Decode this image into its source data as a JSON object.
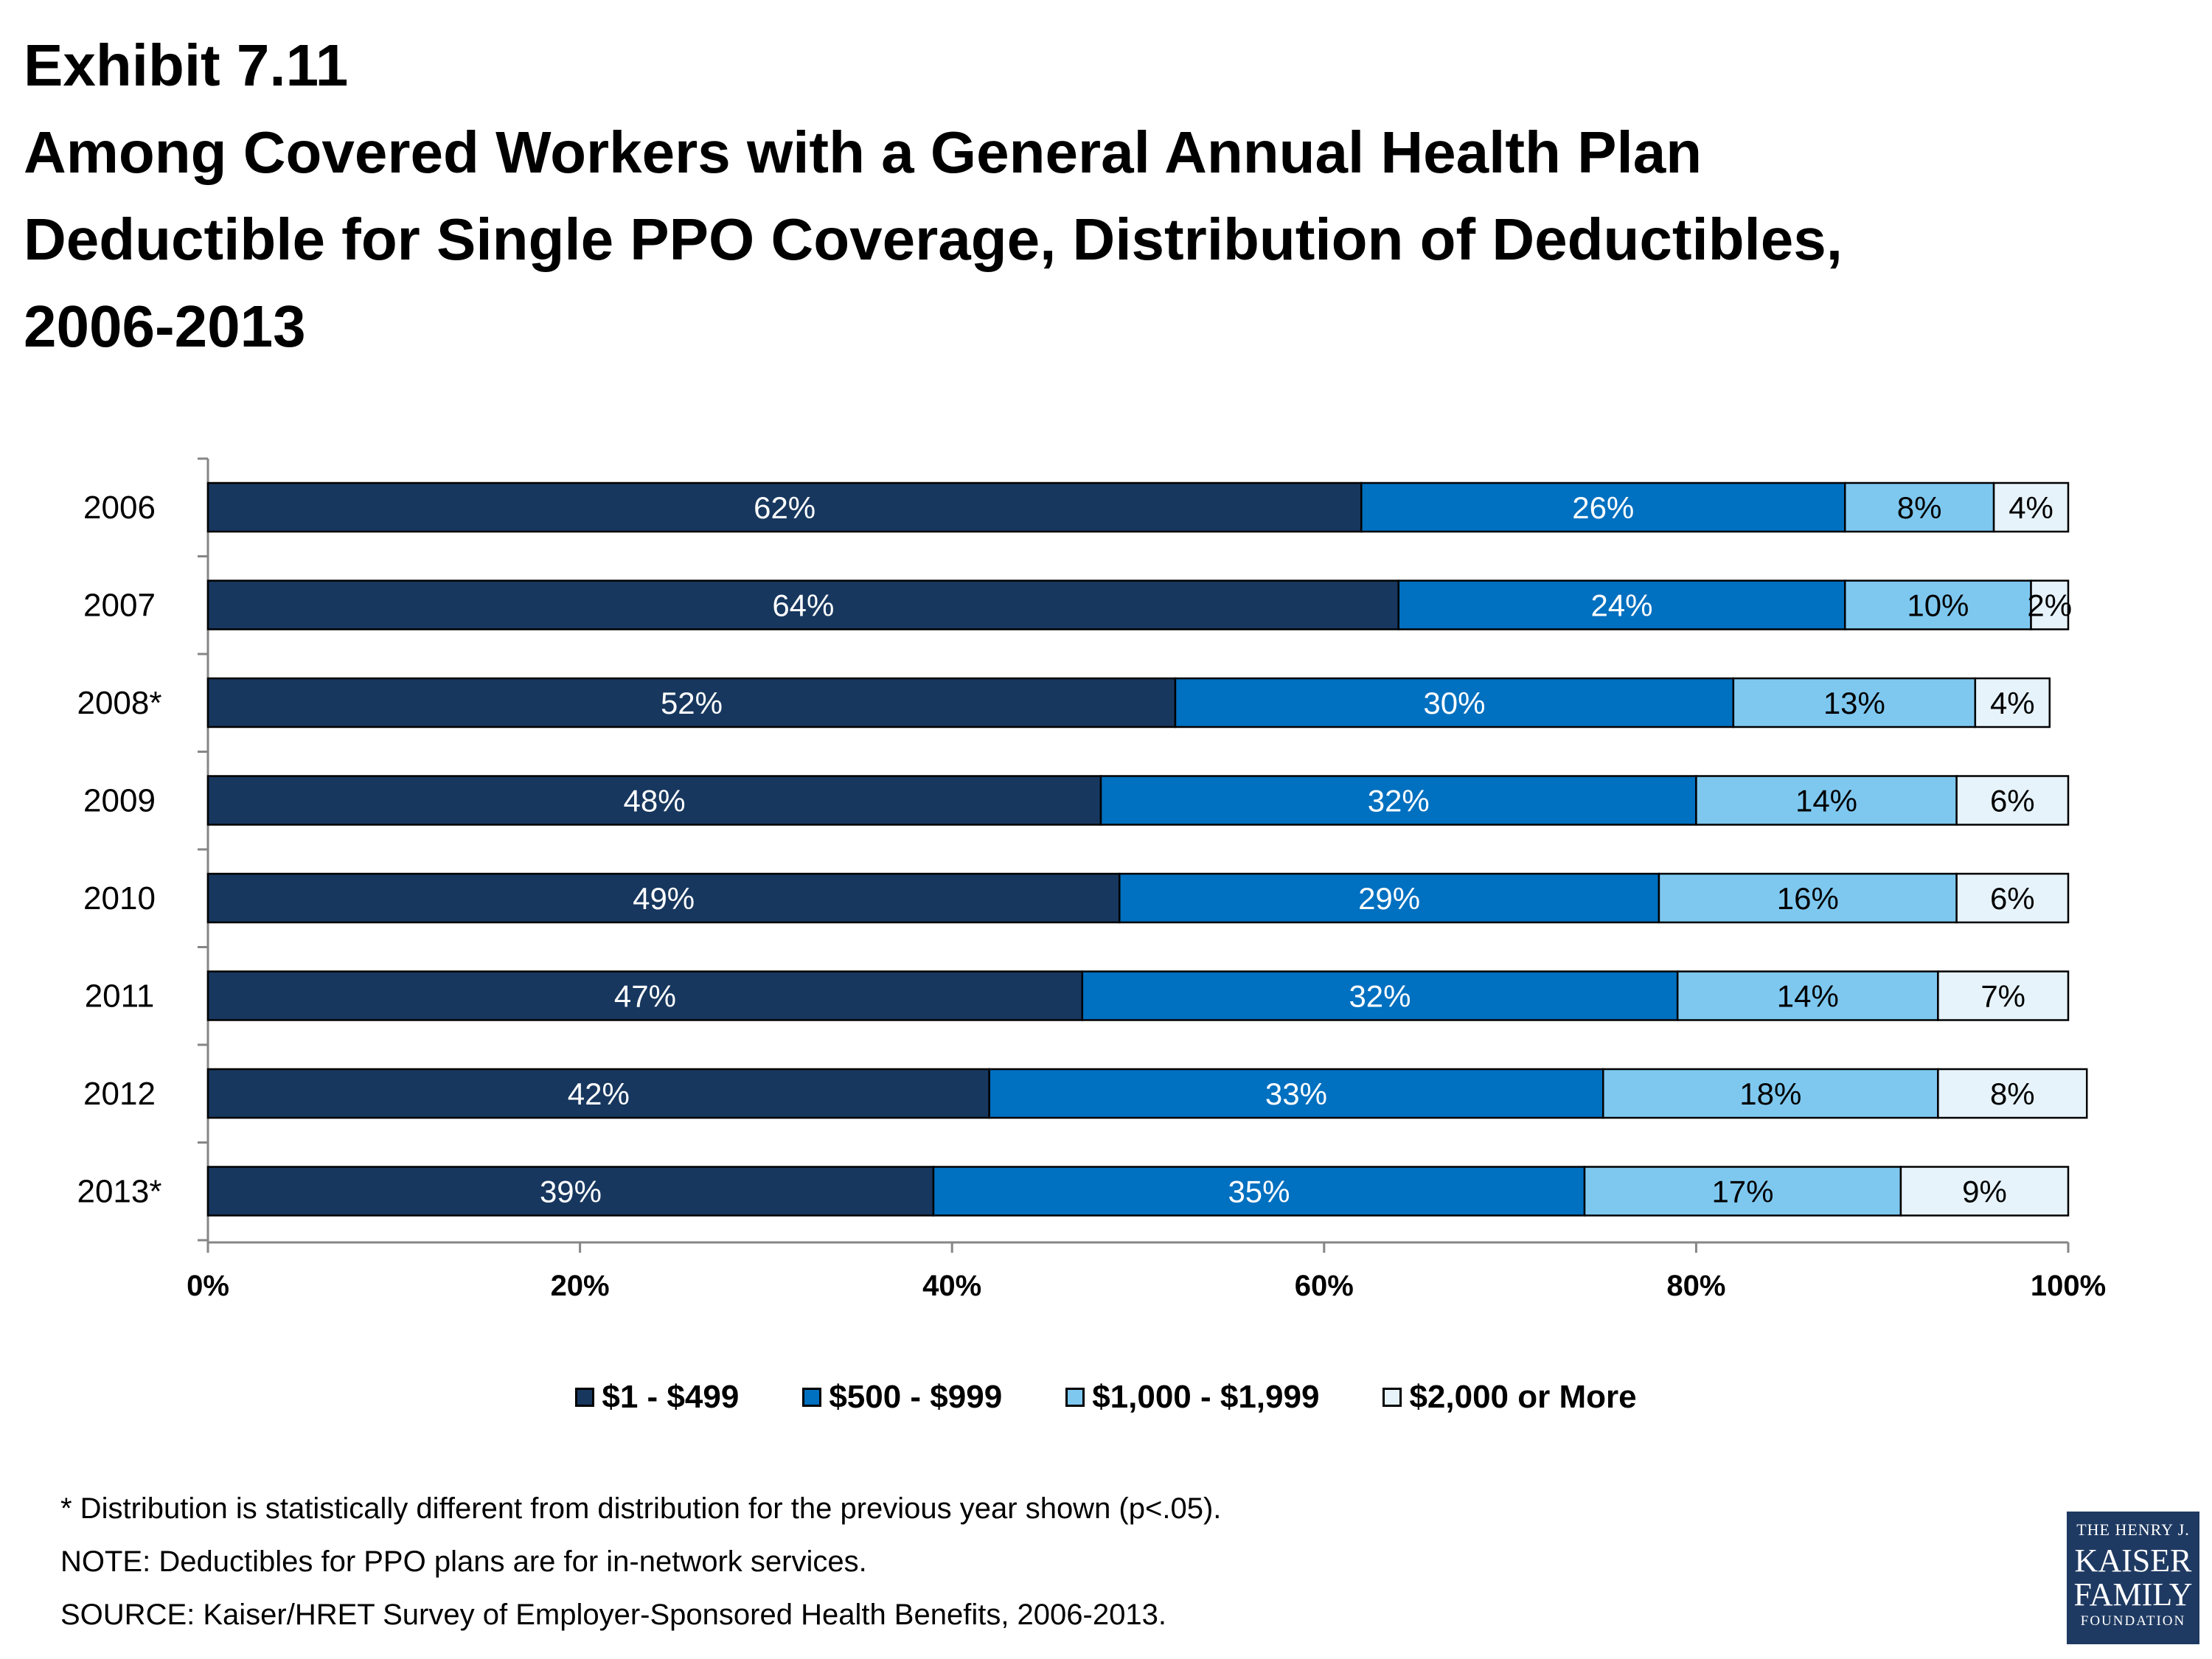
{
  "exhibit": "Exhibit 7.11",
  "title": "Among Covered Workers with a General Annual Health Plan\nDeductible for Single PPO Coverage, Distribution of Deductibles,\n2006-2013",
  "chart_data": {
    "type": "bar",
    "orientation": "horizontal",
    "stacked": true,
    "categories": [
      "2006",
      "2007",
      "2008*",
      "2009",
      "2010",
      "2011",
      "2012",
      "2013*"
    ],
    "series": [
      {
        "name": "$1 - $499",
        "color": "#17375e",
        "label_color": "#ffffff",
        "values": [
          62,
          64,
          52,
          48,
          49,
          47,
          42,
          39
        ]
      },
      {
        "name": "$500 - $999",
        "color": "#0070c0",
        "label_color": "#ffffff",
        "values": [
          26,
          24,
          30,
          32,
          29,
          32,
          33,
          35
        ]
      },
      {
        "name": "$1,000 - $1,999",
        "color": "#7ec8f0",
        "label_color": "#000000",
        "values": [
          8,
          10,
          13,
          14,
          16,
          14,
          18,
          17
        ]
      },
      {
        "name": "$2,000 or More",
        "color": "#e6f3fb",
        "label_color": "#000000",
        "values": [
          4,
          2,
          4,
          6,
          6,
          7,
          8,
          9
        ]
      }
    ],
    "xlim": [
      0,
      100
    ],
    "xticks": [
      "0%",
      "20%",
      "40%",
      "60%",
      "80%",
      "100%"
    ],
    "value_suffix": "%",
    "legend_position": "bottom",
    "grid": false
  },
  "notes": {
    "footnote": "* Distribution is statistically different from distribution for the previous year shown (p<.05).",
    "note": "NOTE: Deductibles for PPO plans are for in-network services.",
    "source": "SOURCE: Kaiser/HRET Survey of Employer-Sponsored Health Benefits, 2006-2013."
  },
  "logo": {
    "line1": "THE HENRY J.",
    "line2": "KAISER",
    "line3": "FAMILY",
    "line4": "FOUNDATION"
  }
}
